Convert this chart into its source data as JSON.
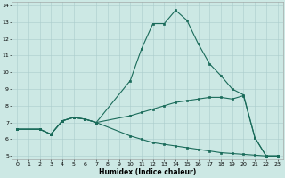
{
  "xlabel": "Humidex (Indice chaleur)",
  "bg_color": "#cce8e4",
  "grid_color": "#aacccc",
  "line_color": "#1a6b5a",
  "xlim": [
    -0.5,
    23.5
  ],
  "ylim": [
    4.8,
    14.2
  ],
  "xticks": [
    0,
    1,
    2,
    3,
    4,
    5,
    6,
    7,
    8,
    9,
    10,
    11,
    12,
    13,
    14,
    15,
    16,
    17,
    18,
    19,
    20,
    21,
    22,
    23
  ],
  "yticks": [
    5,
    6,
    7,
    8,
    9,
    10,
    11,
    12,
    13,
    14
  ],
  "line1_x": [
    0,
    2,
    3,
    4,
    5,
    6,
    7,
    10,
    11,
    12,
    13,
    14,
    15,
    16,
    17,
    18,
    19,
    20,
    21,
    22,
    23
  ],
  "line1_y": [
    6.6,
    6.6,
    6.3,
    7.1,
    7.3,
    7.2,
    7.0,
    9.5,
    11.4,
    12.9,
    12.9,
    13.7,
    13.1,
    11.7,
    10.5,
    9.8,
    9.0,
    8.65,
    6.1,
    5.0,
    5.0
  ],
  "line2_x": [
    0,
    2,
    3,
    4,
    5,
    6,
    7,
    10,
    11,
    12,
    13,
    14,
    15,
    16,
    17,
    18,
    19,
    20,
    21,
    22,
    23
  ],
  "line2_y": [
    6.6,
    6.6,
    6.3,
    7.1,
    7.3,
    7.2,
    7.0,
    7.4,
    7.6,
    7.8,
    8.0,
    8.2,
    8.3,
    8.4,
    8.5,
    8.5,
    8.4,
    8.6,
    6.1,
    5.0,
    5.0
  ],
  "line3_x": [
    0,
    2,
    3,
    4,
    5,
    6,
    7,
    10,
    11,
    12,
    13,
    14,
    15,
    16,
    17,
    18,
    19,
    20,
    21,
    22,
    23
  ],
  "line3_y": [
    6.6,
    6.6,
    6.3,
    7.1,
    7.3,
    7.2,
    7.0,
    6.2,
    6.0,
    5.8,
    5.7,
    5.6,
    5.5,
    5.4,
    5.3,
    5.2,
    5.15,
    5.1,
    5.05,
    5.0,
    5.0
  ]
}
